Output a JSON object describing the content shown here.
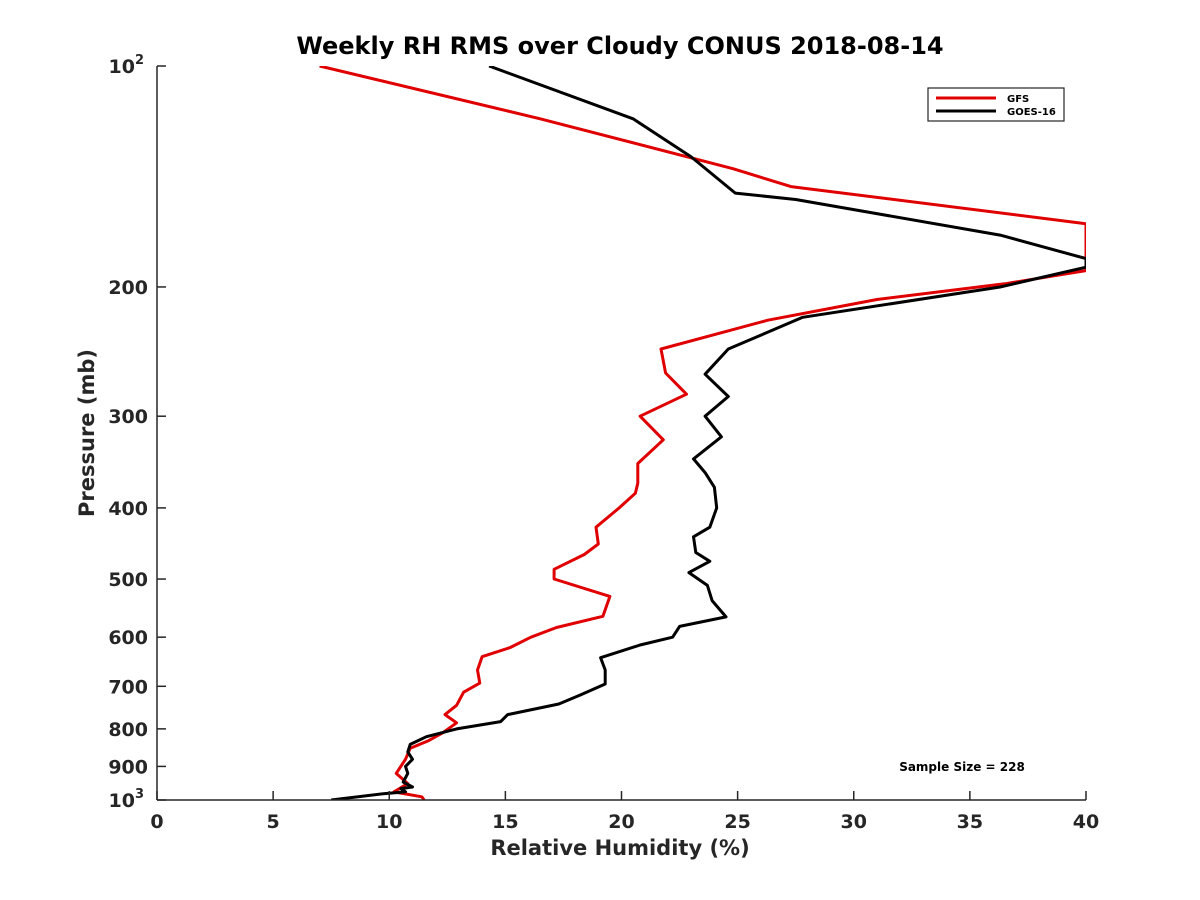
{
  "chart_data": {
    "type": "line",
    "orientation": "profile",
    "title": "Weekly RH RMS over Cloudy CONUS 2018-08-14",
    "xlabel": "Relative Humidity (%)",
    "ylabel": "Pressure (mb)",
    "xlim": [
      0,
      40
    ],
    "ylim": [
      100,
      1000
    ],
    "y_scale": "log",
    "y_reversed": true,
    "grid": false,
    "legend_position": "top-right",
    "x_ticks": [
      {
        "value": 0,
        "label": "0"
      },
      {
        "value": 5,
        "label": "5"
      },
      {
        "value": 10,
        "label": "10"
      },
      {
        "value": 15,
        "label": "15"
      },
      {
        "value": 20,
        "label": "20"
      },
      {
        "value": 25,
        "label": "25"
      },
      {
        "value": 30,
        "label": "30"
      },
      {
        "value": 35,
        "label": "35"
      },
      {
        "value": 40,
        "label": "40"
      }
    ],
    "y_ticks": [
      {
        "value": 100,
        "label": "10",
        "exp": "2"
      },
      {
        "value": 200,
        "label": "200"
      },
      {
        "value": 300,
        "label": "300"
      },
      {
        "value": 400,
        "label": "400"
      },
      {
        "value": 500,
        "label": "500"
      },
      {
        "value": 600,
        "label": "600"
      },
      {
        "value": 700,
        "label": "700"
      },
      {
        "value": 800,
        "label": "800"
      },
      {
        "value": 900,
        "label": "900"
      },
      {
        "value": 1000,
        "label": "10",
        "exp": "3"
      }
    ],
    "series": [
      {
        "name": "GFS",
        "color": "#e00000",
        "points": [
          [
            7.0,
            100
          ],
          [
            16.5,
            118
          ],
          [
            24.8,
            138
          ],
          [
            27.3,
            146
          ],
          [
            40.0,
            164
          ],
          [
            40.0,
            190
          ],
          [
            36.5,
            198
          ],
          [
            31.0,
            208
          ],
          [
            26.3,
            222
          ],
          [
            21.7,
            243
          ],
          [
            21.9,
            262
          ],
          [
            22.8,
            280
          ],
          [
            20.8,
            300
          ],
          [
            21.8,
            323
          ],
          [
            20.7,
            348
          ],
          [
            20.7,
            370
          ],
          [
            20.6,
            382
          ],
          [
            19.9,
            400
          ],
          [
            18.9,
            425
          ],
          [
            19.0,
            448
          ],
          [
            18.4,
            463
          ],
          [
            17.1,
            485
          ],
          [
            17.1,
            500
          ],
          [
            19.5,
            528
          ],
          [
            19.2,
            562
          ],
          [
            17.2,
            582
          ],
          [
            16.1,
            600
          ],
          [
            15.2,
            620
          ],
          [
            14.0,
            638
          ],
          [
            13.8,
            665
          ],
          [
            13.9,
            693
          ],
          [
            13.2,
            713
          ],
          [
            12.9,
            743
          ],
          [
            12.4,
            765
          ],
          [
            12.9,
            785
          ],
          [
            12.3,
            810
          ],
          [
            11.7,
            830
          ],
          [
            10.9,
            850
          ],
          [
            10.7,
            880
          ],
          [
            10.3,
            920
          ],
          [
            10.8,
            950
          ],
          [
            10.2,
            975
          ],
          [
            11.4,
            990
          ],
          [
            11.5,
            1000
          ]
        ]
      },
      {
        "name": "GOES-16",
        "color": "#000000",
        "points": [
          [
            14.3,
            100
          ],
          [
            20.5,
            118
          ],
          [
            23.0,
            133
          ],
          [
            24.9,
            149
          ],
          [
            27.5,
            152
          ],
          [
            36.3,
            170
          ],
          [
            40.0,
            183
          ],
          [
            40.0,
            188
          ],
          [
            36.3,
            200
          ],
          [
            27.8,
            220
          ],
          [
            24.6,
            243
          ],
          [
            23.6,
            263
          ],
          [
            24.6,
            282
          ],
          [
            23.6,
            300
          ],
          [
            24.3,
            320
          ],
          [
            23.1,
            343
          ],
          [
            23.6,
            358
          ],
          [
            24.0,
            375
          ],
          [
            24.1,
            400
          ],
          [
            23.8,
            425
          ],
          [
            23.1,
            438
          ],
          [
            23.2,
            460
          ],
          [
            23.8,
            473
          ],
          [
            22.9,
            490
          ],
          [
            23.7,
            510
          ],
          [
            23.9,
            535
          ],
          [
            24.5,
            563
          ],
          [
            22.5,
            580
          ],
          [
            22.2,
            600
          ],
          [
            20.8,
            615
          ],
          [
            19.1,
            640
          ],
          [
            19.3,
            665
          ],
          [
            19.3,
            695
          ],
          [
            18.2,
            720
          ],
          [
            17.3,
            740
          ],
          [
            15.1,
            765
          ],
          [
            14.8,
            782
          ],
          [
            12.9,
            800
          ],
          [
            11.6,
            820
          ],
          [
            10.9,
            840
          ],
          [
            10.8,
            860
          ],
          [
            11.0,
            880
          ],
          [
            10.7,
            900
          ],
          [
            10.8,
            920
          ],
          [
            10.6,
            945
          ],
          [
            11.0,
            960
          ],
          [
            10.5,
            965
          ],
          [
            10.7,
            975
          ],
          [
            9.8,
            980
          ],
          [
            7.5,
            1000
          ]
        ]
      }
    ],
    "annotations": [
      {
        "text": "Sample Size = 228",
        "position": "bottom-right"
      }
    ]
  }
}
